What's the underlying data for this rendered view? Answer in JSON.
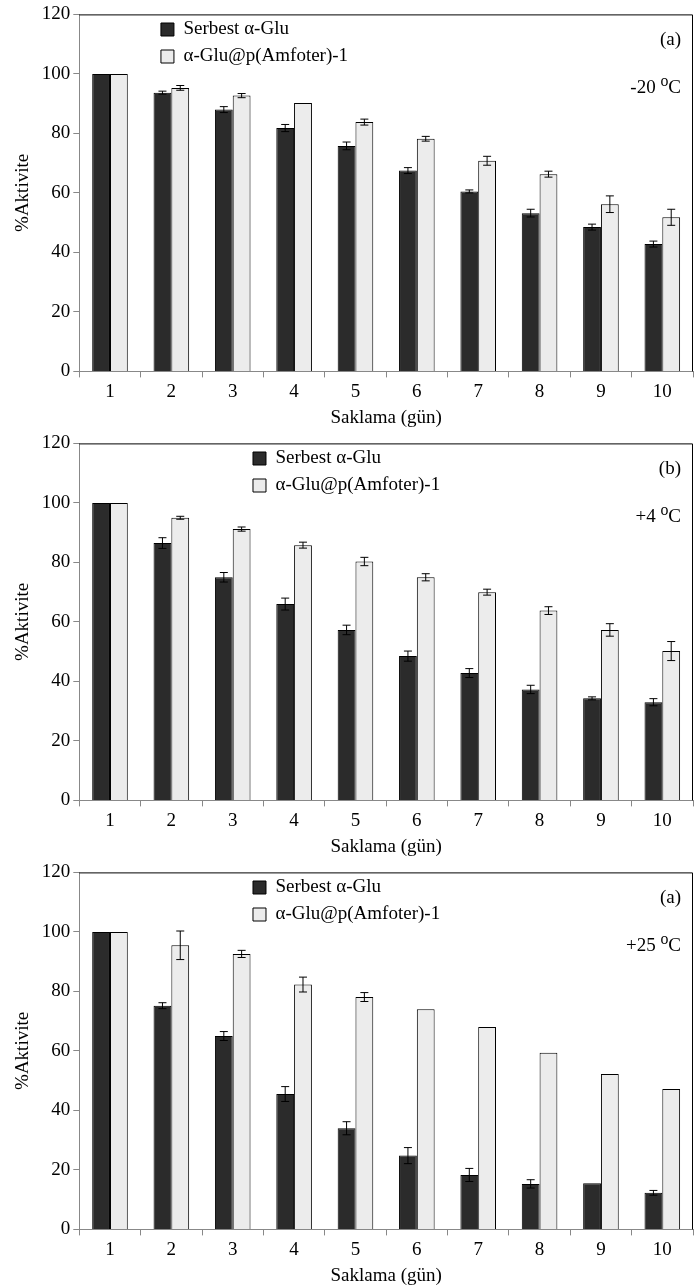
{
  "chart_data": [
    {
      "type": "bar",
      "xlabel": "Saklama (gün)",
      "ylabel": "%Aktivite",
      "categories": [
        "1",
        "2",
        "3",
        "4",
        "5",
        "6",
        "7",
        "8",
        "9",
        "10"
      ],
      "ylim": [
        0,
        120
      ],
      "yticks": [
        0,
        20,
        40,
        60,
        80,
        100,
        120
      ],
      "legend": "top left",
      "annotations": [
        "(a)",
        "-20 $^{o}$C"
      ],
      "series": [
        {
          "name": "Serbest α-Glu",
          "color": "#2b2b2b",
          "values": [
            100,
            93.7,
            88,
            81.8,
            75.8,
            67.5,
            60.5,
            53.2,
            48.5,
            42.8
          ],
          "errors": [
            null,
            0.5,
            1,
            1.2,
            1.3,
            1,
            0.5,
            1.3,
            1,
            1
          ]
        },
        {
          "name": "α-Glu@p(Amfoter)-1",
          "color": "#ececec",
          "values": [
            100,
            95.3,
            92.7,
            90.2,
            83.8,
            78.2,
            70.8,
            66.3,
            56.2,
            51.8
          ],
          "errors": [
            null,
            0.8,
            0.7,
            null,
            1,
            0.8,
            1.5,
            1,
            2.8,
            2.7
          ]
        }
      ]
    },
    {
      "type": "bar",
      "xlabel": "Saklama (gün)",
      "ylabel": "%Aktivite",
      "categories": [
        "1",
        "2",
        "3",
        "4",
        "5",
        "6",
        "7",
        "8",
        "9",
        "10"
      ],
      "ylim": [
        0,
        120
      ],
      "yticks": [
        0,
        20,
        40,
        60,
        80,
        100,
        120
      ],
      "legend": "top",
      "annotations": [
        "(b)",
        "+4 $^{o}$C"
      ],
      "series": [
        {
          "name": "Serbest α-Glu",
          "color": "#2b2b2b",
          "values": [
            100,
            86.5,
            75,
            66,
            57.3,
            48.5,
            42.8,
            37.3,
            34.3,
            33
          ],
          "errors": [
            null,
            1.8,
            1.6,
            2,
            1.6,
            1.7,
            1.5,
            1.4,
            0.5,
            1.2
          ]
        },
        {
          "name": "α-Glu@p(Amfoter)-1",
          "color": "#ececec",
          "values": [
            100,
            95,
            91.2,
            85.8,
            80.3,
            75,
            70,
            63.8,
            57.3,
            50.2
          ],
          "errors": [
            null,
            0.5,
            0.7,
            1,
            1.4,
            1.2,
            1,
            1.3,
            2.1,
            3.2
          ]
        }
      ]
    },
    {
      "type": "bar",
      "xlabel": "Saklama (gün)",
      "ylabel": "%Aktivite",
      "categories": [
        "1",
        "2",
        "3",
        "4",
        "5",
        "6",
        "7",
        "8",
        "9",
        "10"
      ],
      "ylim": [
        0,
        120
      ],
      "yticks": [
        0,
        20,
        40,
        60,
        80,
        100,
        120
      ],
      "legend": "top",
      "annotations": [
        "(a)",
        "+25 $^{o}$C"
      ],
      "series": [
        {
          "name": "Serbest α-Glu",
          "color": "#2b2b2b",
          "values": [
            100,
            75.2,
            65,
            45.5,
            34,
            24.8,
            18.3,
            15.3,
            15.5,
            12.3
          ],
          "errors": [
            null,
            1,
            1.5,
            2.5,
            2.2,
            2.7,
            2.2,
            1.4,
            null,
            0.8
          ]
        },
        {
          "name": "α-Glu@p(Amfoter)-1",
          "color": "#ececec",
          "values": [
            100,
            95.5,
            92.6,
            82.3,
            78.1,
            74,
            68,
            59.4,
            52.2,
            47.2
          ],
          "errors": [
            null,
            4.8,
            1.2,
            2.5,
            1.5,
            null,
            null,
            null,
            null,
            null
          ]
        }
      ]
    }
  ]
}
